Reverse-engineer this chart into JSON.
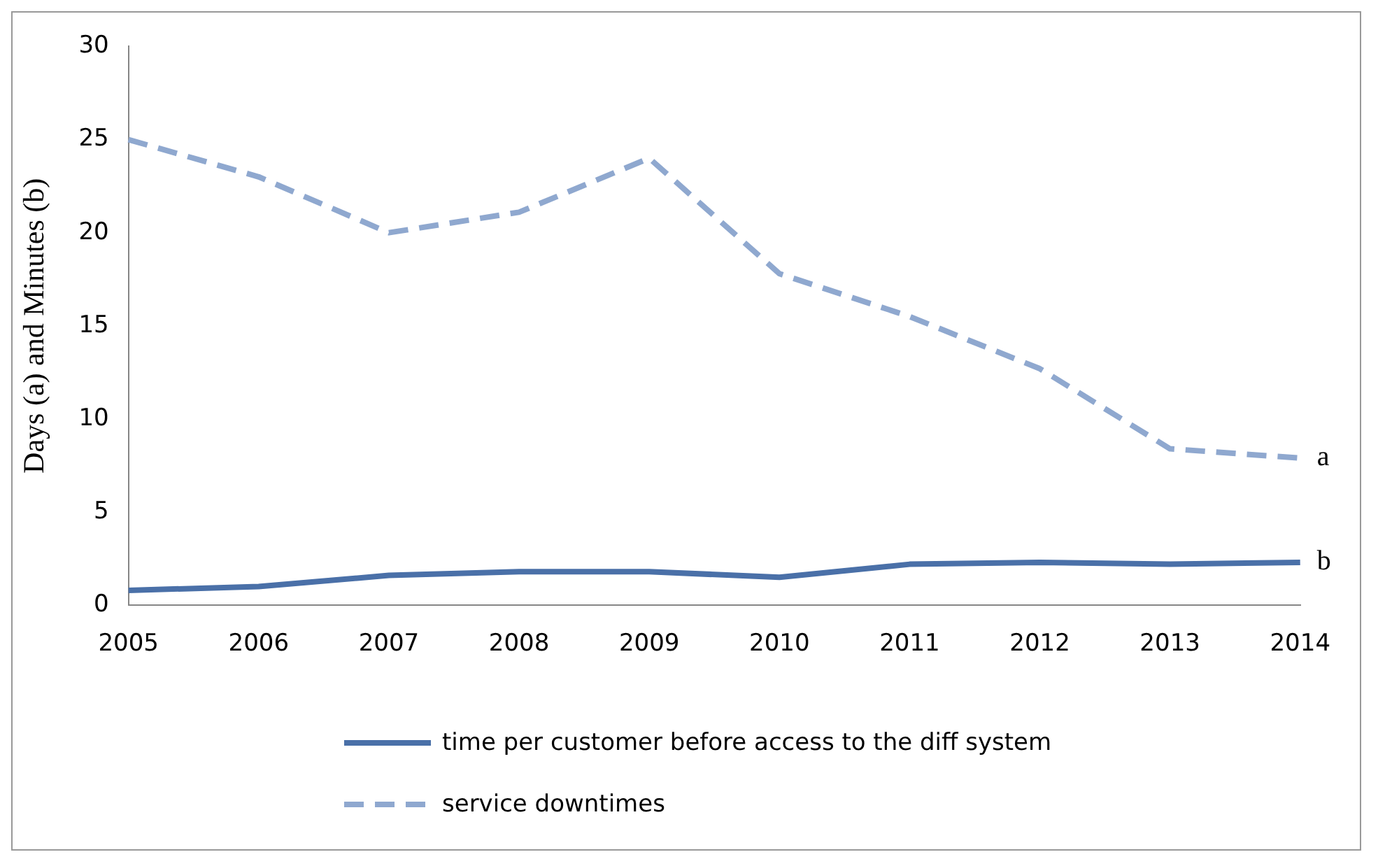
{
  "chart_data": {
    "type": "line",
    "ylabel": "Days (a) and Minutes (b)",
    "categories": [
      "2005",
      "2006",
      "2007",
      "2008",
      "2009",
      "2010",
      "2011",
      "2012",
      "2013",
      "2014"
    ],
    "series": [
      {
        "name": "time per customer before access to the diff  system",
        "color": "#4a70a8",
        "line_style": "solid",
        "values": [
          0.8,
          1.0,
          1.6,
          1.8,
          1.8,
          1.5,
          2.2,
          2.3,
          2.2,
          2.3
        ]
      },
      {
        "name": "service downtimes",
        "color": "#8fa8cf",
        "line_style": "dashed",
        "values": [
          25,
          23,
          20,
          21.1,
          24,
          17.8,
          15.5,
          12.7,
          8.4,
          7.9
        ]
      }
    ],
    "ylim": [
      0,
      30
    ],
    "yticks": [
      0,
      5,
      10,
      15,
      20,
      25,
      30
    ],
    "grid": false,
    "legend": "bottom",
    "marker": "none",
    "annotations": [
      {
        "text": "a",
        "x": "2014",
        "y": 7.9
      },
      {
        "text": "b",
        "x": "2014",
        "y": 2.3
      }
    ]
  }
}
